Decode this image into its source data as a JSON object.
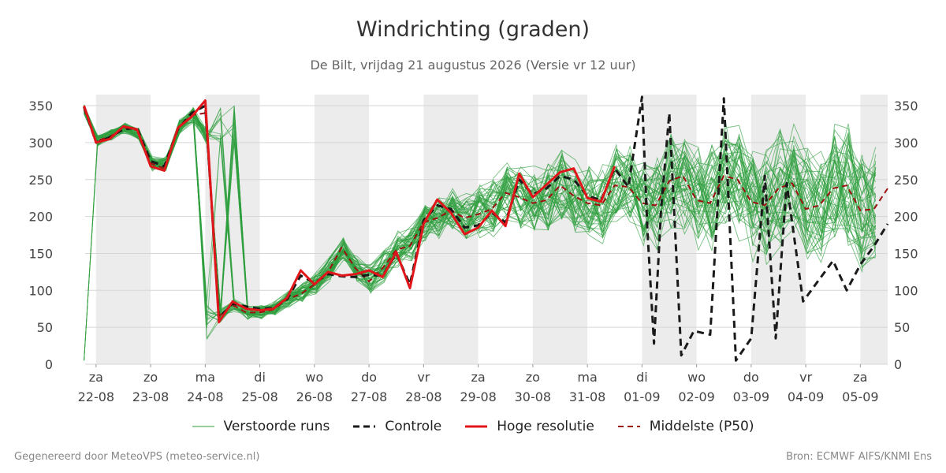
{
  "title": "Windrichting (graden)",
  "subtitle": "De Bilt, vrijdag 21 augustus 2026 (Versie vr 12 uur)",
  "footer_left": "Gegenereerd door MeteoVPS (meteo-service.nl)",
  "footer_right": "Bron: ECMWF AIFS/KNMI Ens",
  "legend": [
    {
      "label": "Verstoorde runs",
      "color": "#2e9e3e",
      "style": "thin"
    },
    {
      "label": "Controle",
      "color": "#1a1a1a",
      "style": "dashed"
    },
    {
      "label": "Hoge resolutie",
      "color": "#e0161a",
      "style": "thick"
    },
    {
      "label": "Middelste (P50)",
      "color": "#9c1010",
      "style": "dashed"
    }
  ],
  "chart_data": {
    "type": "line",
    "title": "Windrichting (graden)",
    "ylim": [
      0,
      365
    ],
    "yticks": [
      0,
      50,
      100,
      150,
      200,
      250,
      300,
      350
    ],
    "xlim": [
      -0.2,
      14.5
    ],
    "x_ticks": [
      {
        "x": 0,
        "day": "za",
        "date": "22-08"
      },
      {
        "x": 1,
        "day": "zo",
        "date": "23-08"
      },
      {
        "x": 2,
        "day": "ma",
        "date": "24-08"
      },
      {
        "x": 3,
        "day": "di",
        "date": "25-08"
      },
      {
        "x": 4,
        "day": "wo",
        "date": "26-08"
      },
      {
        "x": 5,
        "day": "do",
        "date": "27-08"
      },
      {
        "x": 6,
        "day": "vr",
        "date": "28-08"
      },
      {
        "x": 7,
        "day": "za",
        "date": "29-08"
      },
      {
        "x": 8,
        "day": "zo",
        "date": "30-08"
      },
      {
        "x": 9,
        "day": "ma",
        "date": "31-08"
      },
      {
        "x": 10,
        "day": "di",
        "date": "01-09"
      },
      {
        "x": 11,
        "day": "wo",
        "date": "02-09"
      },
      {
        "x": 12,
        "day": "do",
        "date": "03-09"
      },
      {
        "x": 13,
        "day": "vr",
        "date": "04-09"
      },
      {
        "x": 14,
        "day": "za",
        "date": "05-09"
      }
    ],
    "shaded_bands": [
      [
        0,
        1
      ],
      [
        2,
        3
      ],
      [
        4,
        5
      ],
      [
        6,
        7
      ],
      [
        8,
        9
      ],
      [
        10,
        11
      ],
      [
        12,
        13
      ],
      [
        14,
        14.5
      ]
    ],
    "grid": true,
    "legend_position": "bottom",
    "series": [
      {
        "name": "Hoge resolutie",
        "color": "#e0161a",
        "x": [
          -0.22,
          0,
          0.25,
          0.5,
          0.75,
          1,
          1.25,
          1.5,
          1.75,
          2,
          2.25,
          2.5,
          2.75,
          3,
          3.25,
          3.5,
          3.75,
          4,
          4.25,
          4.5,
          4.75,
          5,
          5.25,
          5.5,
          5.75,
          6,
          6.25,
          6.5,
          6.75,
          7,
          7.25,
          7.5,
          7.75,
          8,
          8.25,
          8.5,
          8.75,
          9,
          9.25,
          9.5
        ],
        "y": [
          350,
          300,
          305,
          322,
          318,
          268,
          262,
          320,
          335,
          357,
          57,
          85,
          75,
          73,
          75,
          90,
          127,
          108,
          125,
          120,
          122,
          127,
          118,
          152,
          103,
          190,
          223,
          205,
          176,
          185,
          208,
          187,
          258,
          226,
          243,
          260,
          265,
          225,
          220,
          268
        ]
      },
      {
        "name": "Controle",
        "color": "#1a1a1a",
        "x": [
          -0.22,
          0,
          0.25,
          0.5,
          0.75,
          1,
          1.25,
          1.5,
          1.75,
          2,
          2.25,
          2.5,
          2.75,
          3,
          3.25,
          3.5,
          3.75,
          4,
          4.25,
          4.5,
          4.75,
          5,
          5.25,
          5.5,
          5.75,
          6,
          6.25,
          6.5,
          6.75,
          7,
          7.25,
          7.5,
          7.75,
          8,
          8.25,
          8.5,
          8.75,
          9,
          9.25,
          9.5,
          9.75,
          10,
          10.1,
          10.22,
          10.35,
          10.5,
          10.72,
          10.95,
          11.25,
          11.5,
          11.72,
          12,
          12.25,
          12.45,
          12.65,
          12.95,
          13.25,
          13.5,
          13.75,
          14,
          14.25,
          14.5
        ],
        "y": [
          348,
          300,
          307,
          318,
          320,
          275,
          268,
          318,
          340,
          350,
          63,
          82,
          78,
          75,
          76,
          88,
          120,
          110,
          122,
          119,
          118,
          121,
          120,
          150,
          108,
          195,
          215,
          210,
          185,
          188,
          205,
          192,
          250,
          230,
          238,
          255,
          250,
          228,
          222,
          265,
          240,
          362,
          180,
          28,
          210,
          340,
          12,
          45,
          40,
          360,
          5,
          35,
          255,
          35,
          245,
          85,
          115,
          140,
          100,
          135,
          160,
          190
        ]
      },
      {
        "name": "Middelste (P50)",
        "color": "#9c1010",
        "x": [
          -0.22,
          0,
          0.25,
          0.5,
          0.75,
          1,
          1.25,
          1.5,
          1.75,
          2,
          2.25,
          2.5,
          2.75,
          3,
          3.25,
          3.5,
          3.75,
          4,
          4.25,
          4.5,
          4.75,
          5,
          5.25,
          5.5,
          5.75,
          6,
          6.25,
          6.5,
          6.75,
          7,
          7.25,
          7.5,
          7.75,
          8,
          8.25,
          8.5,
          8.75,
          9,
          9.25,
          9.5,
          9.75,
          10,
          10.25,
          10.5,
          10.75,
          11,
          11.25,
          11.5,
          11.75,
          12,
          12.25,
          12.5,
          12.75,
          13,
          13.25,
          13.5,
          13.75,
          14,
          14.25,
          14.5
        ],
        "y": [
          345,
          302,
          308,
          320,
          317,
          272,
          265,
          320,
          337,
          340,
          65,
          80,
          70,
          70,
          74,
          88,
          95,
          108,
          125,
          158,
          130,
          112,
          130,
          155,
          160,
          192,
          198,
          208,
          198,
          203,
          210,
          232,
          226,
          218,
          222,
          242,
          228,
          218,
          215,
          242,
          240,
          218,
          215,
          248,
          255,
          222,
          218,
          255,
          250,
          220,
          215,
          238,
          245,
          210,
          215,
          238,
          242,
          208,
          210,
          238
        ]
      }
    ],
    "ensemble": {
      "name": "Verstoorde runs",
      "members": 50,
      "color": "#2e9e3e",
      "median_ref": "Middelste (P50)",
      "spread_from_x": [
        [
          0,
          6
        ],
        [
          2,
          10
        ],
        [
          3,
          7
        ],
        [
          6,
          22
        ],
        [
          10,
          55
        ],
        [
          14,
          75
        ]
      ]
    }
  }
}
